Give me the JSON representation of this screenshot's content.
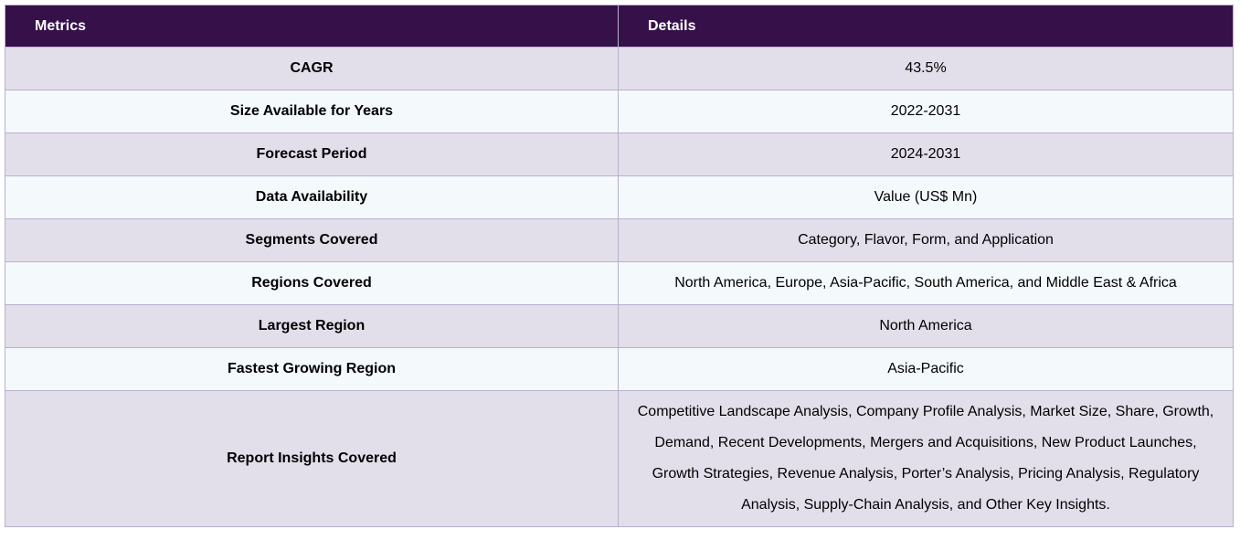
{
  "table": {
    "headers": {
      "metrics": "Metrics",
      "details": "Details"
    },
    "rows": [
      {
        "metric": "CAGR",
        "detail": "43.5%"
      },
      {
        "metric": "Size Available for Years",
        "detail": "2022-2031"
      },
      {
        "metric": "Forecast Period",
        "detail": "2024-2031"
      },
      {
        "metric": "Data Availability",
        "detail": "Value (US$ Mn)"
      },
      {
        "metric": "Segments Covered",
        "detail": "Category, Flavor, Form, and Application"
      },
      {
        "metric": "Regions Covered",
        "detail": "North America, Europe, Asia-Pacific, South America, and Middle East & Africa"
      },
      {
        "metric": "Largest Region",
        "detail": "North America"
      },
      {
        "metric": "Fastest Growing Region",
        "detail": "Asia-Pacific"
      },
      {
        "metric": "Report Insights Covered",
        "detail": "Competitive Landscape Analysis, Company Profile Analysis, Market Size, Share, Growth, Demand, Recent Developments, Mergers and Acquisitions, New Product Launches, Growth Strategies, Revenue Analysis, Porter’s Analysis, Pricing Analysis, Regulatory Analysis, Supply-Chain Analysis, and Other Key Insights."
      }
    ],
    "colors": {
      "header_background": "#361049",
      "header_text": "#ffffff",
      "row_odd": "#e2dfeb",
      "row_even": "#f4f9fc",
      "border": "#b8b0cc"
    }
  }
}
